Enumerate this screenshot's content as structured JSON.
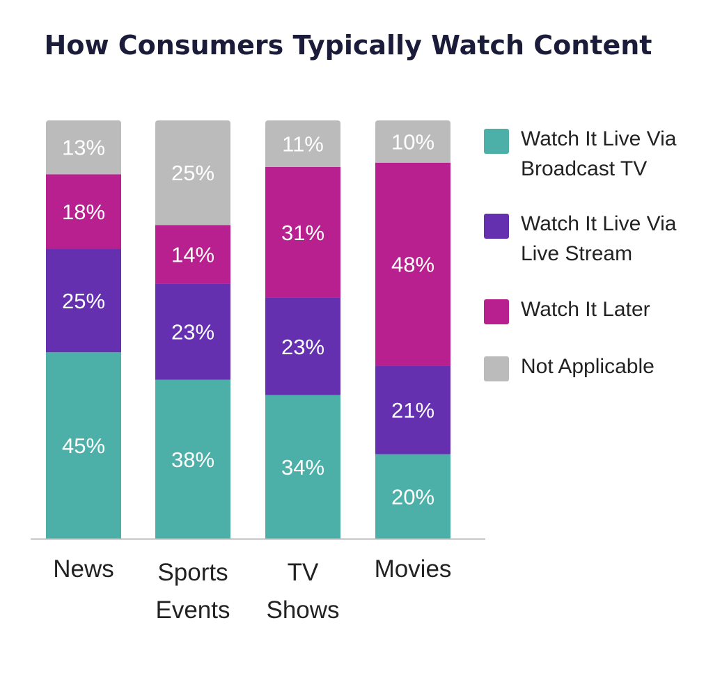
{
  "chart_data": {
    "type": "bar",
    "stacked": true,
    "title": "How Consumers Typically Watch Content",
    "xlabel": "",
    "ylabel": "",
    "categories": [
      "News",
      "Sports Events",
      "TV Shows",
      "Movies"
    ],
    "series": [
      {
        "name": "Watch It Live Via Broadcast TV",
        "color": "#4DB0A8",
        "values": [
          45,
          38,
          34,
          20
        ]
      },
      {
        "name": "Watch It Live Via Live Stream",
        "color": "#6530B0",
        "values": [
          25,
          23,
          23,
          21
        ]
      },
      {
        "name": "Watch It Later",
        "color": "#B8208F",
        "values": [
          18,
          14,
          31,
          48
        ]
      },
      {
        "name": "Not Applicable",
        "color": "#BBBBBB",
        "values": [
          13,
          25,
          11,
          10
        ]
      }
    ],
    "value_format": "percent",
    "grid": false,
    "legend_position": "right",
    "legend_lines": [
      [
        "Watch It Live Via",
        "Broadcast TV"
      ],
      [
        "Watch It Live Via",
        "Live Stream"
      ],
      [
        "Watch It Later"
      ],
      [
        "Not Applicable"
      ]
    ]
  }
}
